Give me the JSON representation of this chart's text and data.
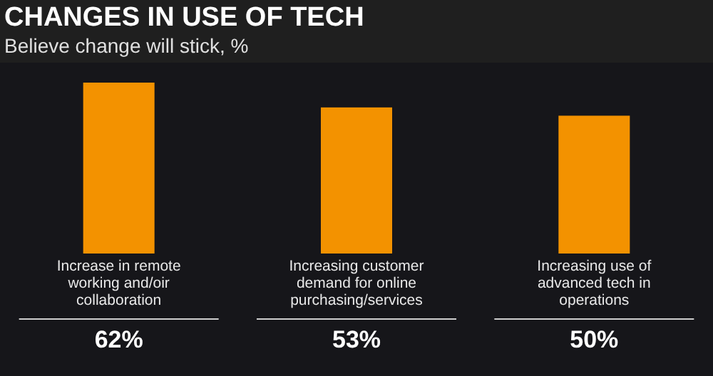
{
  "chart_data": {
    "type": "bar",
    "title": "CHANGES IN USE OF TECH",
    "subtitle": "Believe change will stick, %",
    "categories": [
      "Increase in remote working and/oir collaboration",
      "Increasing customer demand for online purchasing/services",
      "Increasing use of advanced tech in operations"
    ],
    "values": [
      62,
      53,
      50
    ],
    "value_labels": [
      "62%",
      "53%",
      "50%"
    ],
    "color": "#f39200"
  }
}
